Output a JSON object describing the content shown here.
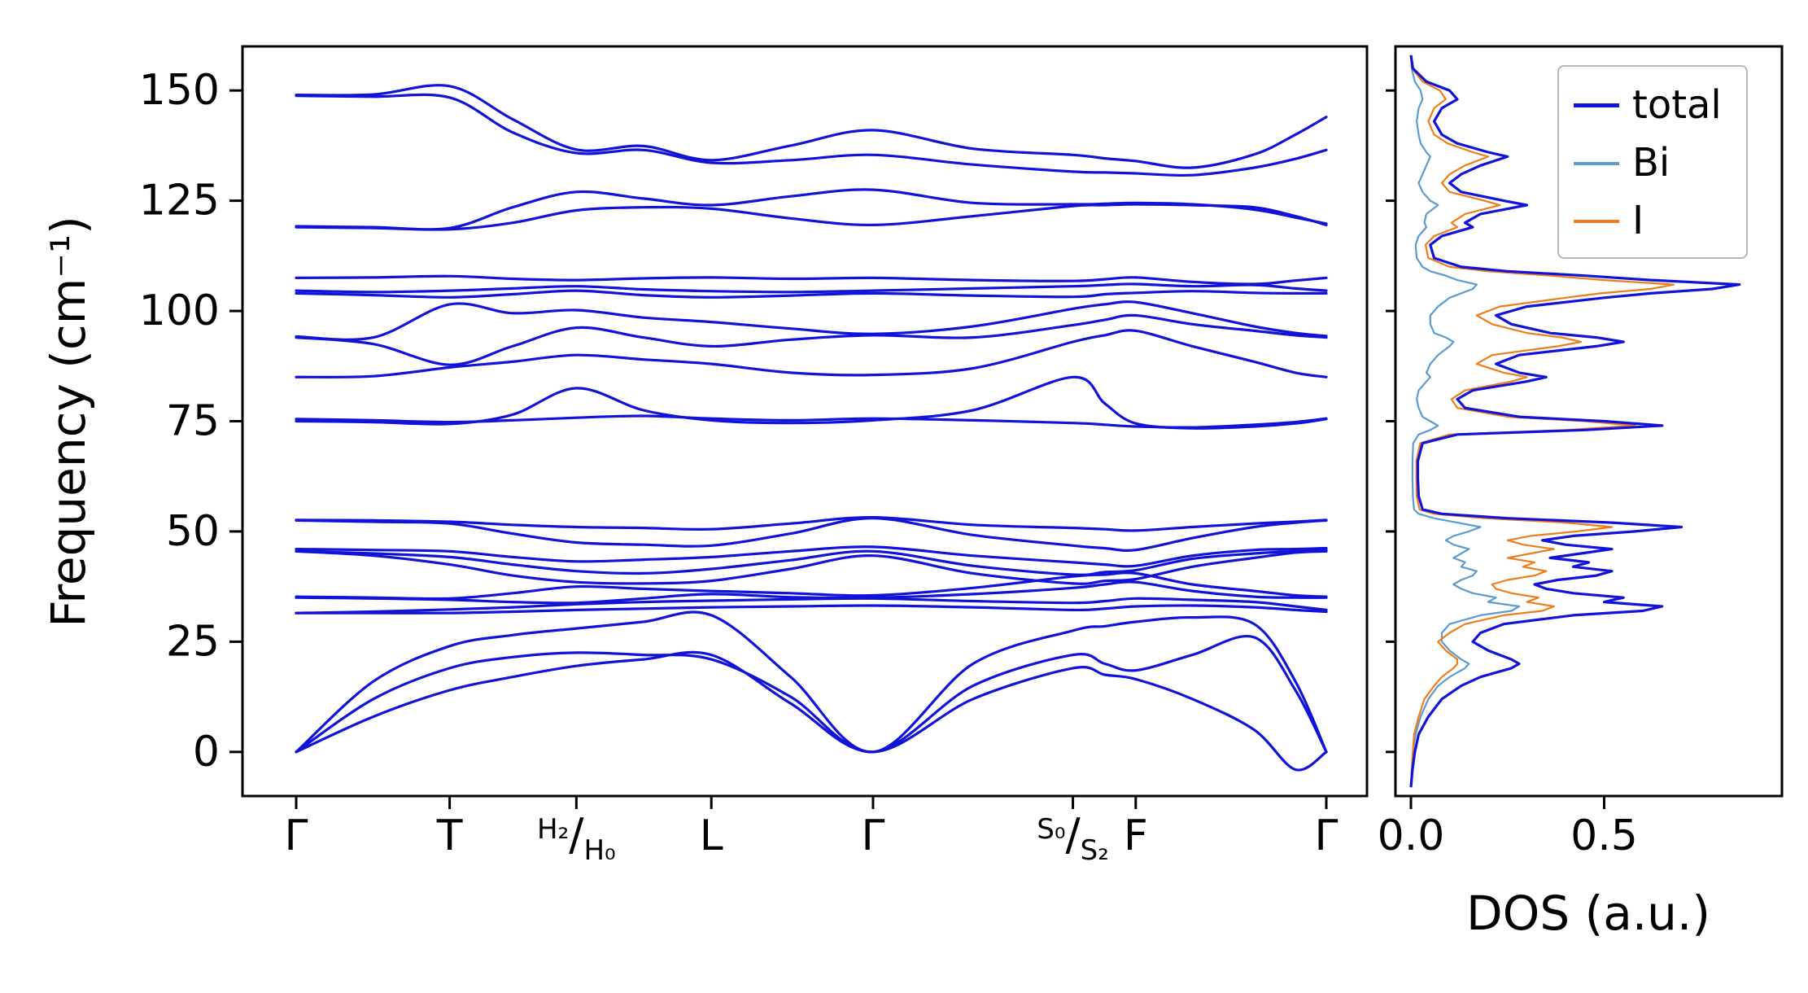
{
  "chart_data": [
    {
      "type": "line",
      "panel": "phonon-band-structure",
      "ylabel": "Frequency (cm⁻¹)",
      "ylim": [
        -10,
        160
      ],
      "yticks": [
        0,
        25,
        50,
        75,
        100,
        125,
        150
      ],
      "line_color": "#1212d8",
      "kpath_points": [
        {
          "label": "Γ",
          "pos": 0.0,
          "fraction": false
        },
        {
          "label": "T",
          "pos": 0.149,
          "fraction": false
        },
        {
          "label": "H₂/H₀",
          "pos": 0.272,
          "fraction": true
        },
        {
          "label": "L",
          "pos": 0.403,
          "fraction": false
        },
        {
          "label": "Γ",
          "pos": 0.56,
          "fraction": false
        },
        {
          "label": "S₀/S₂",
          "pos": 0.754,
          "fraction": true
        },
        {
          "label": "F",
          "pos": 0.815,
          "fraction": false
        },
        {
          "label": "Γ",
          "pos": 1.0,
          "fraction": false
        }
      ],
      "k_positions": [
        0,
        0.075,
        0.149,
        0.21,
        0.272,
        0.337,
        0.403,
        0.48,
        0.56,
        0.657,
        0.754,
        0.785,
        0.815,
        0.87,
        0.93,
        0.97,
        1.0
      ],
      "bands": [
        [
          0,
          8,
          14,
          17,
          19.5,
          21,
          22,
          11,
          0,
          12,
          19,
          17.5,
          16.5,
          12,
          5,
          -4,
          0
        ],
        [
          0,
          12,
          19,
          21.5,
          22.5,
          22,
          21,
          12.5,
          0,
          15,
          22,
          20,
          18.5,
          22,
          26,
          14,
          0
        ],
        [
          0,
          16,
          24,
          26.5,
          28,
          29.5,
          31,
          17,
          0,
          20,
          27.5,
          28.5,
          29.5,
          30.5,
          29,
          16,
          0
        ],
        [
          31.5,
          31.5,
          31.5,
          31.8,
          32.2,
          32.5,
          32.8,
          33,
          33.2,
          32.8,
          32.2,
          32.5,
          33,
          33.2,
          32.8,
          32.2,
          31.8
        ],
        [
          31.5,
          31.8,
          32.3,
          32.8,
          33.5,
          34,
          34.3,
          34.6,
          34.8,
          34.2,
          33.8,
          34.2,
          34.8,
          34.5,
          34,
          33,
          32.2
        ],
        [
          35,
          34.8,
          34.5,
          34,
          33.8,
          34.8,
          35.8,
          35.1,
          35,
          35.8,
          37.2,
          38,
          38.5,
          36.5,
          35.2,
          35,
          35
        ],
        [
          35.2,
          35,
          34.8,
          36,
          37.5,
          37,
          36.5,
          36,
          35.5,
          37.2,
          39.8,
          40.2,
          40.5,
          38,
          36.5,
          35.5,
          35.2
        ],
        [
          45.5,
          44.5,
          42.5,
          40,
          38.5,
          38.2,
          38.8,
          41.5,
          44.5,
          40.5,
          38.2,
          38.8,
          39.2,
          42,
          44,
          45.2,
          45.5
        ],
        [
          45.5,
          45,
          44.2,
          42.5,
          41,
          40.5,
          41.5,
          43.5,
          45.5,
          42.2,
          40.2,
          40.8,
          41.2,
          43.8,
          45,
          45.5,
          45.8
        ],
        [
          46,
          45.8,
          45.5,
          44.2,
          43.2,
          43.6,
          44.2,
          45.5,
          46.5,
          44.5,
          43,
          42.5,
          42.2,
          44.5,
          45.8,
          46,
          46.2
        ],
        [
          52.5,
          52.2,
          51.8,
          49.5,
          47.5,
          47,
          46.8,
          49.5,
          53,
          49.2,
          46.8,
          46.2,
          45.8,
          48.5,
          51,
          52,
          52.5
        ],
        [
          52.6,
          52.5,
          52.2,
          51.5,
          51,
          50.8,
          50.5,
          51.8,
          53.2,
          51.5,
          50.8,
          50.5,
          50.2,
          51,
          51.8,
          52.2,
          52.6
        ],
        [
          75,
          74.8,
          74.4,
          76.5,
          82.5,
          77.5,
          75.2,
          74.6,
          75.2,
          77.5,
          85,
          79,
          74.5,
          73.4,
          73.8,
          74.5,
          75.5
        ],
        [
          75.5,
          75.2,
          74.8,
          75.2,
          75.8,
          76.2,
          75.6,
          75.2,
          75.6,
          75.2,
          74.6,
          74.2,
          73.8,
          73.6,
          74.2,
          74.8,
          75.6
        ],
        [
          85,
          85.2,
          87.2,
          88.5,
          90,
          89,
          88,
          86,
          85.5,
          87,
          93,
          94.5,
          95.5,
          92,
          88.5,
          86,
          85
        ],
        [
          94,
          92.5,
          87.8,
          92,
          96.2,
          94,
          92,
          93.5,
          94.5,
          94,
          96.8,
          98,
          99,
          97,
          95.5,
          94.5,
          94
        ],
        [
          94.2,
          94,
          101.5,
          99.5,
          100.2,
          98.5,
          97.5,
          96,
          94.8,
          96.5,
          100.5,
          101.5,
          102,
          99.5,
          96.5,
          95,
          94.3
        ],
        [
          104,
          103.6,
          103.1,
          103.8,
          104.6,
          103.6,
          103.1,
          103.5,
          104,
          103.5,
          103.2,
          103.8,
          104.1,
          104.5,
          104.1,
          104,
          104
        ],
        [
          104.6,
          104.3,
          104.6,
          105.1,
          105.6,
          104.9,
          104.5,
          104.3,
          104.6,
          105.1,
          105.6,
          105.9,
          106.1,
          105.6,
          105.9,
          105.1,
          104.6
        ],
        [
          107.5,
          107.6,
          107.9,
          107.3,
          107,
          107.4,
          107.6,
          107.3,
          107.5,
          107,
          106.8,
          107.2,
          107.6,
          106.6,
          106.1,
          106.9,
          107.5
        ],
        [
          119,
          118.8,
          118.5,
          120,
          122.8,
          123.5,
          123.2,
          121,
          119.5,
          121.5,
          123.8,
          124,
          124.2,
          124,
          123.5,
          121.5,
          119.5
        ],
        [
          119.2,
          119,
          118.8,
          123.5,
          127,
          125.5,
          124,
          126,
          127.5,
          124.5,
          124.2,
          124.3,
          124.5,
          124.2,
          123,
          121.2,
          119.8
        ],
        [
          148.8,
          148.6,
          148.4,
          140.5,
          135.8,
          136.5,
          133.6,
          134.2,
          135.4,
          133.2,
          131.6,
          131.4,
          131.2,
          130.8,
          132.5,
          134.5,
          136.5
        ],
        [
          149,
          149.1,
          151,
          143.5,
          136.6,
          137.4,
          134.2,
          137.5,
          141,
          136.8,
          135.4,
          134.6,
          134,
          132.5,
          135.5,
          140,
          144
        ]
      ]
    },
    {
      "type": "line",
      "panel": "dos",
      "xlabel": "DOS (a.u.)",
      "xlim": [
        -0.04,
        0.96
      ],
      "xticks": [
        {
          "value": 0.0,
          "label": "0.0"
        },
        {
          "value": 0.5,
          "label": "0.5"
        }
      ],
      "legend_position": "upper right",
      "legend": [
        {
          "label": "total",
          "color": "#1212d8"
        },
        {
          "label": "Bi",
          "color": "#5b9bd0"
        },
        {
          "label": "I",
          "color": "#ee7d1d"
        }
      ],
      "points_format": [
        "frequency_cm-1",
        "total",
        "Bi",
        "I"
      ],
      "points": [
        [
          -8,
          0,
          0,
          0
        ],
        [
          -4,
          0.004,
          0.002,
          0.002
        ],
        [
          0,
          0.01,
          0.005,
          0.005
        ],
        [
          4,
          0.02,
          0.012,
          0.008
        ],
        [
          8,
          0.045,
          0.025,
          0.02
        ],
        [
          12,
          0.08,
          0.045,
          0.035
        ],
        [
          15,
          0.13,
          0.07,
          0.06
        ],
        [
          17,
          0.18,
          0.1,
          0.08
        ],
        [
          19,
          0.26,
          0.14,
          0.11
        ],
        [
          20,
          0.28,
          0.15,
          0.12
        ],
        [
          21,
          0.26,
          0.13,
          0.12
        ],
        [
          23,
          0.2,
          0.1,
          0.09
        ],
        [
          25,
          0.16,
          0.08,
          0.07
        ],
        [
          27,
          0.18,
          0.08,
          0.1
        ],
        [
          29,
          0.24,
          0.1,
          0.14
        ],
        [
          31,
          0.42,
          0.18,
          0.24
        ],
        [
          32,
          0.6,
          0.26,
          0.34
        ],
        [
          33,
          0.65,
          0.28,
          0.37
        ],
        [
          34,
          0.5,
          0.2,
          0.3
        ],
        [
          35,
          0.55,
          0.22,
          0.33
        ],
        [
          36,
          0.42,
          0.16,
          0.26
        ],
        [
          37,
          0.35,
          0.13,
          0.22
        ],
        [
          38,
          0.32,
          0.11,
          0.21
        ],
        [
          39,
          0.38,
          0.13,
          0.25
        ],
        [
          40,
          0.48,
          0.16,
          0.32
        ],
        [
          41,
          0.52,
          0.17,
          0.35
        ],
        [
          42,
          0.42,
          0.13,
          0.29
        ],
        [
          43,
          0.46,
          0.14,
          0.32
        ],
        [
          44,
          0.36,
          0.11,
          0.25
        ],
        [
          45,
          0.44,
          0.13,
          0.31
        ],
        [
          46,
          0.52,
          0.15,
          0.37
        ],
        [
          47,
          0.4,
          0.11,
          0.29
        ],
        [
          48,
          0.34,
          0.09,
          0.25
        ],
        [
          49,
          0.42,
          0.11,
          0.31
        ],
        [
          50,
          0.58,
          0.15,
          0.43
        ],
        [
          51,
          0.7,
          0.18,
          0.52
        ],
        [
          52,
          0.52,
          0.12,
          0.4
        ],
        [
          53,
          0.25,
          0.06,
          0.19
        ],
        [
          54,
          0.08,
          0.02,
          0.06
        ],
        [
          55,
          0.03,
          0.008,
          0.022
        ],
        [
          58,
          0.02,
          0.005,
          0.015
        ],
        [
          62,
          0.018,
          0.004,
          0.014
        ],
        [
          66,
          0.018,
          0.004,
          0.014
        ],
        [
          70,
          0.03,
          0.006,
          0.024
        ],
        [
          72,
          0.12,
          0.02,
          0.1
        ],
        [
          73,
          0.45,
          0.05,
          0.4
        ],
        [
          74,
          0.65,
          0.07,
          0.58
        ],
        [
          75,
          0.5,
          0.05,
          0.45
        ],
        [
          76,
          0.28,
          0.03,
          0.25
        ],
        [
          78,
          0.14,
          0.02,
          0.12
        ],
        [
          80,
          0.12,
          0.015,
          0.105
        ],
        [
          82,
          0.16,
          0.02,
          0.14
        ],
        [
          84,
          0.3,
          0.04,
          0.26
        ],
        [
          85,
          0.35,
          0.05,
          0.3
        ],
        [
          86,
          0.28,
          0.04,
          0.24
        ],
        [
          88,
          0.22,
          0.05,
          0.17
        ],
        [
          90,
          0.28,
          0.07,
          0.21
        ],
        [
          92,
          0.48,
          0.1,
          0.38
        ],
        [
          93,
          0.55,
          0.11,
          0.44
        ],
        [
          94,
          0.48,
          0.09,
          0.39
        ],
        [
          95,
          0.36,
          0.06,
          0.3
        ],
        [
          97,
          0.26,
          0.05,
          0.21
        ],
        [
          99,
          0.22,
          0.05,
          0.17
        ],
        [
          101,
          0.3,
          0.07,
          0.23
        ],
        [
          103,
          0.5,
          0.1,
          0.4
        ],
        [
          104,
          0.62,
          0.13,
          0.49
        ],
        [
          105,
          0.78,
          0.16,
          0.62
        ],
        [
          106,
          0.85,
          0.17,
          0.68
        ],
        [
          107,
          0.62,
          0.12,
          0.5
        ],
        [
          108,
          0.45,
          0.09,
          0.36
        ],
        [
          109,
          0.25,
          0.05,
          0.2
        ],
        [
          110,
          0.13,
          0.03,
          0.1
        ],
        [
          112,
          0.06,
          0.015,
          0.045
        ],
        [
          115,
          0.05,
          0.012,
          0.038
        ],
        [
          117,
          0.08,
          0.02,
          0.06
        ],
        [
          119,
          0.16,
          0.04,
          0.12
        ],
        [
          120,
          0.14,
          0.035,
          0.105
        ],
        [
          122,
          0.18,
          0.04,
          0.14
        ],
        [
          124,
          0.3,
          0.07,
          0.23
        ],
        [
          125,
          0.24,
          0.05,
          0.19
        ],
        [
          127,
          0.13,
          0.03,
          0.1
        ],
        [
          129,
          0.1,
          0.02,
          0.08
        ],
        [
          131,
          0.13,
          0.03,
          0.1
        ],
        [
          133,
          0.18,
          0.04,
          0.14
        ],
        [
          135,
          0.25,
          0.05,
          0.2
        ],
        [
          136,
          0.2,
          0.04,
          0.16
        ],
        [
          138,
          0.12,
          0.025,
          0.095
        ],
        [
          140,
          0.08,
          0.02,
          0.06
        ],
        [
          143,
          0.06,
          0.015,
          0.045
        ],
        [
          146,
          0.08,
          0.02,
          0.06
        ],
        [
          148,
          0.12,
          0.03,
          0.09
        ],
        [
          150,
          0.1,
          0.025,
          0.075
        ],
        [
          152,
          0.04,
          0.01,
          0.03
        ],
        [
          155,
          0.005,
          0.002,
          0.003
        ],
        [
          158,
          0,
          0,
          0
        ]
      ]
    }
  ]
}
